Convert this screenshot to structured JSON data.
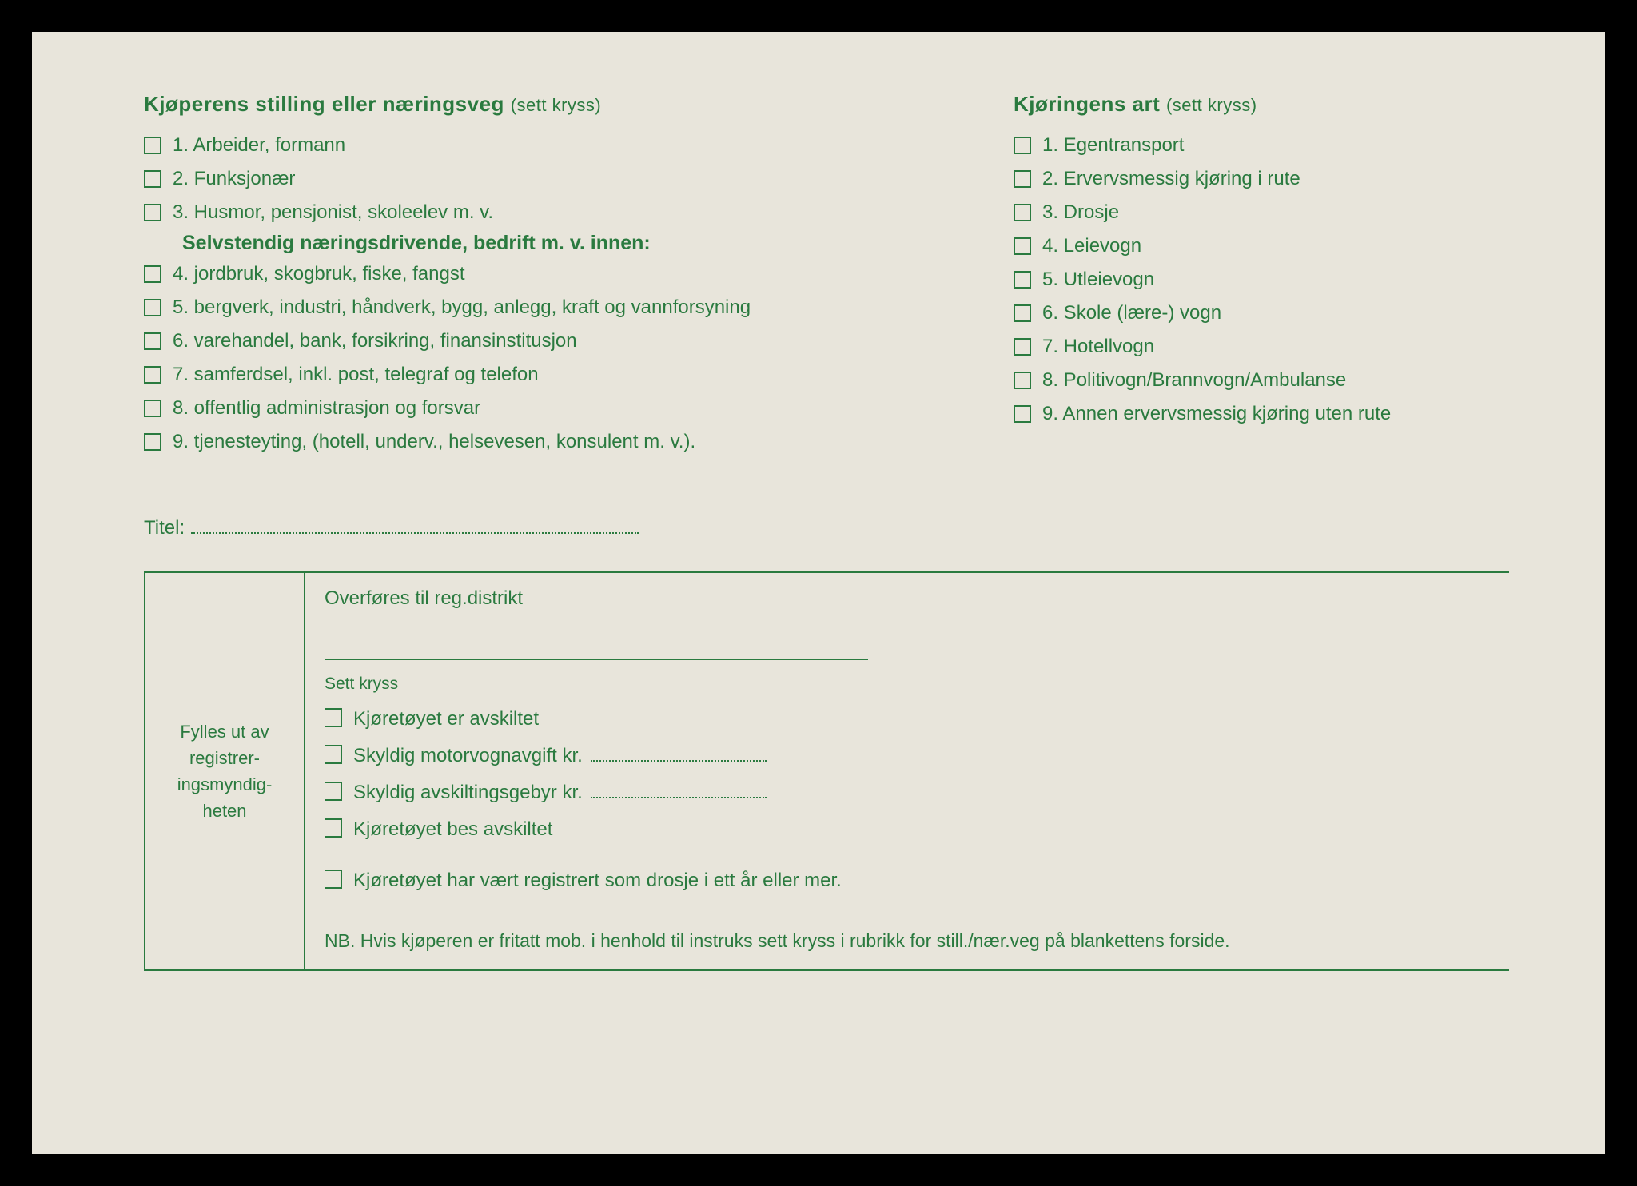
{
  "colors": {
    "text": "#2a7a3f",
    "paper_bg": "#e8e5db",
    "page_bg": "#000000",
    "border": "#2a7a3f"
  },
  "typography": {
    "heading_fontsize": 26,
    "body_fontsize": 24,
    "small_fontsize": 22
  },
  "left_section": {
    "heading": "Kjøperens stilling eller næringsveg",
    "heading_note": "(sett kryss)",
    "items_top": [
      "1. Arbeider, formann",
      "2. Funksjonær",
      "3. Husmor, pensjonist, skoleelev m. v."
    ],
    "sub_heading": "Selvstendig næringsdrivende, bedrift m. v. innen:",
    "items_bottom": [
      "4. jordbruk, skogbruk, fiske, fangst",
      "5. bergverk, industri, håndverk, bygg, anlegg, kraft og vannforsyning",
      "6. varehandel, bank, forsikring, finansinstitusjon",
      "7. samferdsel, inkl. post, telegraf og telefon",
      "8. offentlig administrasjon og forsvar",
      "9. tjenesteyting, (hotell, underv., helsevesen, konsulent m. v.)."
    ]
  },
  "right_section": {
    "heading": "Kjøringens art",
    "heading_note": "(sett kryss)",
    "items": [
      "1. Egentransport",
      "2. Ervervsmessig kjøring i rute",
      "3. Drosje",
      "4. Leievogn",
      "5. Utleievogn",
      "6. Skole (lære-) vogn",
      "7. Hotellvogn",
      "8. Politivogn/Brannvogn/Ambulanse",
      "9. Annen ervervsmessig kjøring uten rute"
    ]
  },
  "titel_label": "Titel:",
  "bottom_box": {
    "left_label": "Fylles ut av registrer-ingsmyndig-heten",
    "transfer_label": "Overføres til reg.distrikt",
    "sett_kryss": "Sett kryss",
    "items": [
      "Kjøretøyet er avskiltet",
      "Skyldig motorvognavgift kr.",
      "Skyldig avskiltingsgebyr kr.",
      "Kjøretøyet bes avskiltet"
    ],
    "item_spaced": "Kjøretøyet har vært registrert som drosje i ett år eller mer.",
    "item_has_dotted": [
      false,
      true,
      true,
      false
    ],
    "nb_text": "NB. Hvis kjøperen er fritatt mob. i henhold til instruks sett kryss i rubrikk for still./nær.veg på blankettens forside."
  }
}
